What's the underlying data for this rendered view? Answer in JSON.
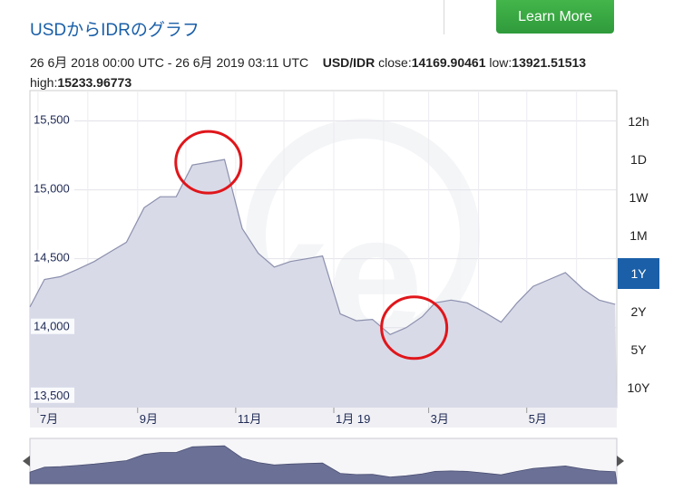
{
  "header": {
    "title": "USDからIDRのグラフ",
    "learn_more": "Learn More"
  },
  "info": {
    "date_range": "26 6月 2018 00:00 UTC - 26 6月 2019 03:11 UTC",
    "pair": "USD/IDR",
    "close_label": "close:",
    "close": "14169.90461",
    "low_label": "low:",
    "low": "13921.51513",
    "high_label": "high:",
    "high": "15233.96773"
  },
  "ranges": [
    {
      "label": "12h",
      "active": false
    },
    {
      "label": "1D",
      "active": false
    },
    {
      "label": "1W",
      "active": false
    },
    {
      "label": "1M",
      "active": false
    },
    {
      "label": "1Y",
      "active": true
    },
    {
      "label": "2Y",
      "active": false
    },
    {
      "label": "5Y",
      "active": false
    },
    {
      "label": "10Y",
      "active": false
    }
  ],
  "colors": {
    "title": "#1a5fa8",
    "button": "#2f9a3b",
    "active_range": "#1a5fa8",
    "area_fill": "#d8dae8",
    "line": "#8c90ad",
    "navigator_fill": "#6b7096",
    "annotation": "#e0161b"
  },
  "chart_data": {
    "type": "area",
    "title": "",
    "xlabel": "",
    "ylabel": "",
    "x_ticks": [
      "7月",
      "9月",
      "11月",
      "1月 19",
      "3月",
      "5月"
    ],
    "y_ticks": [
      13500,
      14000,
      14500,
      15000,
      15500
    ],
    "ylim": [
      13420,
      15720
    ],
    "x": [
      "2018-06-26",
      "2018-07-05",
      "2018-07-15",
      "2018-07-25",
      "2018-08-05",
      "2018-08-15",
      "2018-08-25",
      "2018-09-05",
      "2018-09-15",
      "2018-09-25",
      "2018-10-05",
      "2018-10-15",
      "2018-10-25",
      "2018-11-05",
      "2018-11-15",
      "2018-11-25",
      "2018-12-05",
      "2018-12-15",
      "2018-12-25",
      "2019-01-05",
      "2019-01-15",
      "2019-01-25",
      "2019-02-05",
      "2019-02-15",
      "2019-02-25",
      "2019-03-05",
      "2019-03-15",
      "2019-03-25",
      "2019-04-05",
      "2019-04-15",
      "2019-04-25",
      "2019-05-05",
      "2019-05-15",
      "2019-05-25",
      "2019-06-05",
      "2019-06-15",
      "2019-06-25"
    ],
    "values": [
      14150,
      14350,
      14370,
      14420,
      14480,
      14550,
      14620,
      14870,
      14950,
      14950,
      15180,
      15200,
      15220,
      14720,
      14540,
      14440,
      14480,
      14500,
      14520,
      14100,
      14050,
      14060,
      13950,
      14000,
      14080,
      14180,
      14200,
      14180,
      14110,
      14040,
      14180,
      14300,
      14350,
      14400,
      14280,
      14200,
      14170
    ],
    "annotations": [
      {
        "label": "",
        "x": "2018-10-15",
        "y": 15200
      },
      {
        "label": "",
        "x": "2019-02-20",
        "y": 14000
      }
    ]
  }
}
